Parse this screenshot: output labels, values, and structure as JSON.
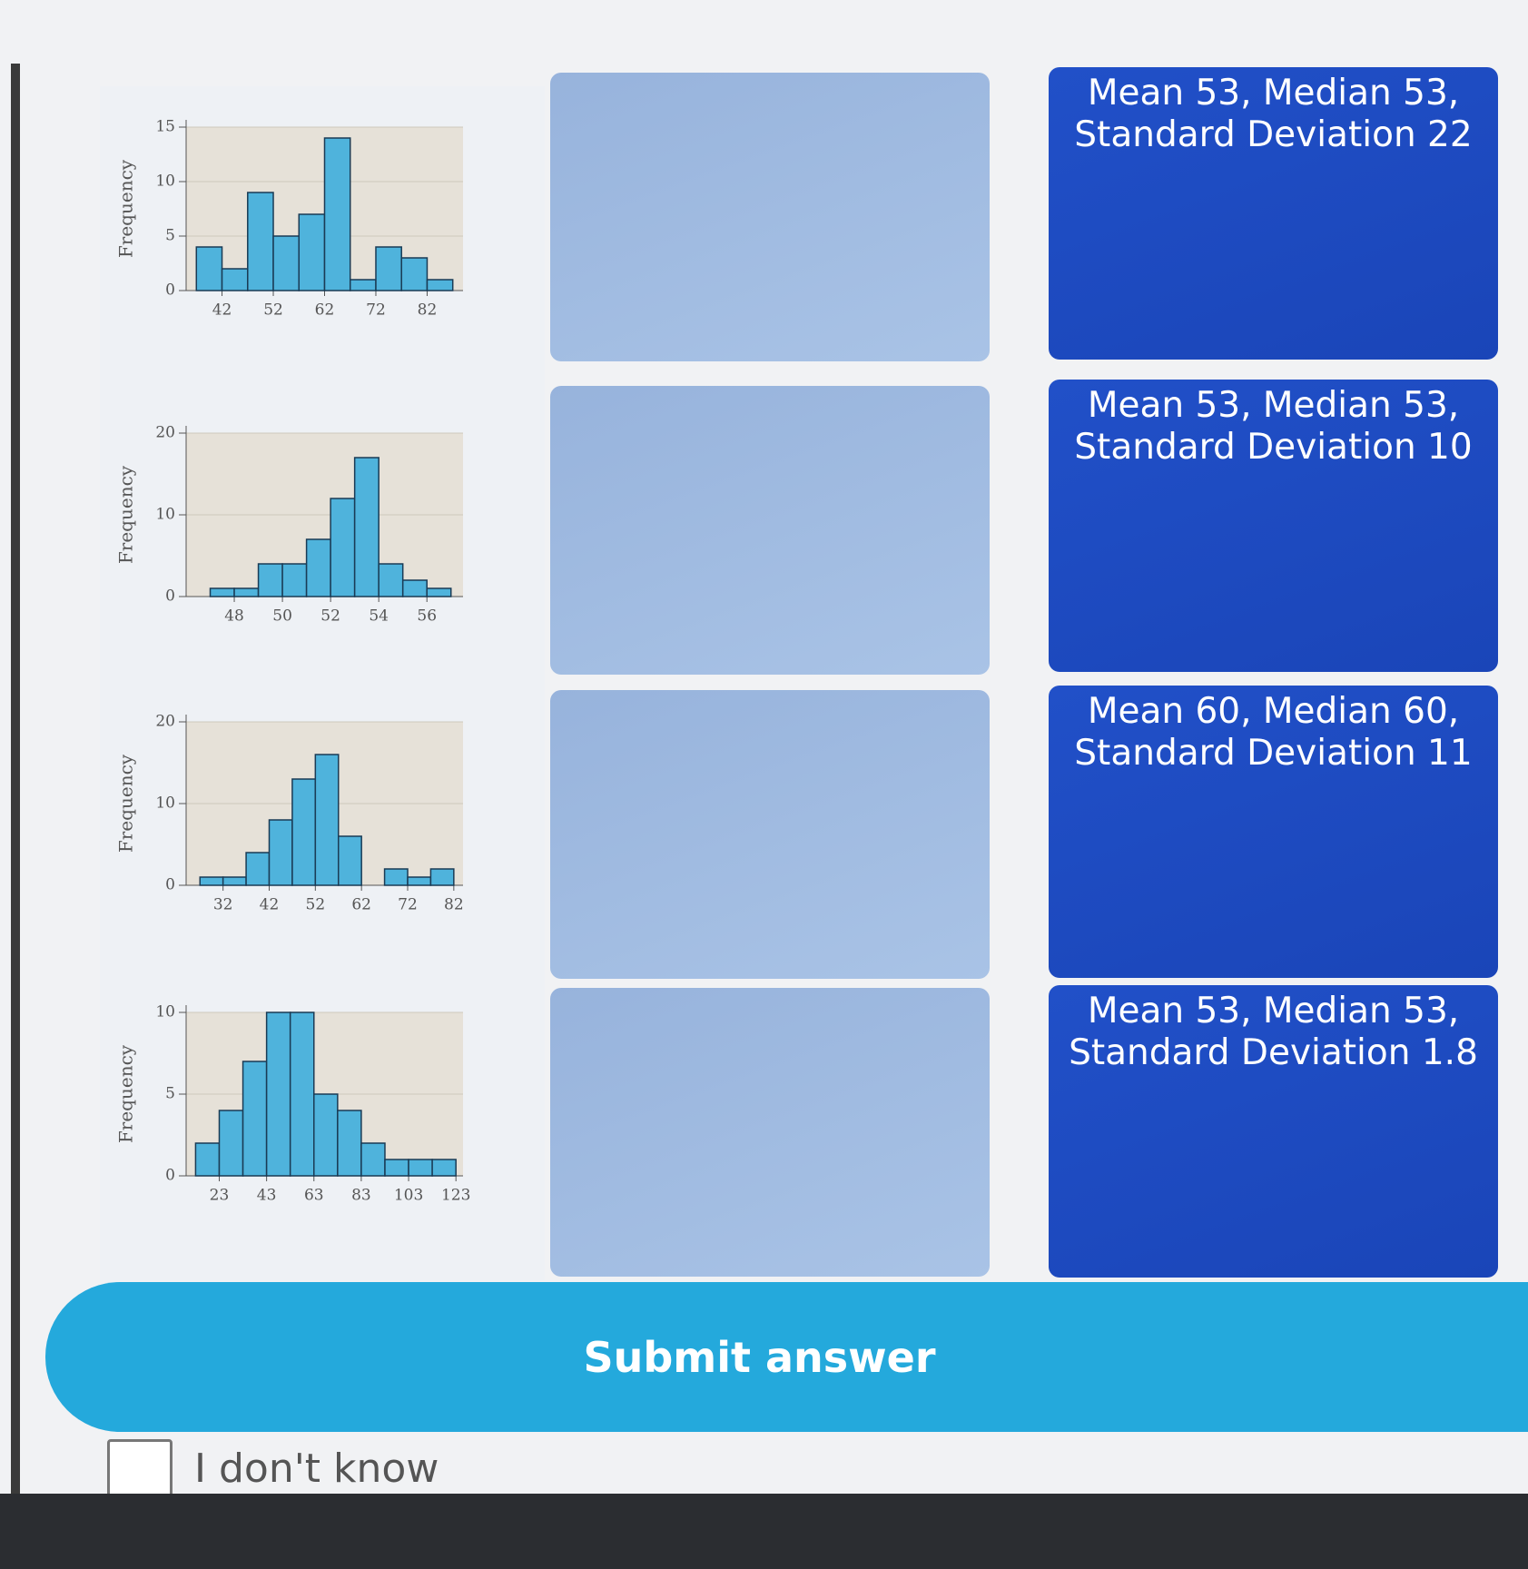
{
  "histograms": [
    {
      "type": "histogram",
      "y_label": "Frequency",
      "bins": [
        37,
        42,
        47,
        52,
        57,
        62,
        67,
        72,
        77,
        82,
        87
      ],
      "values": [
        4,
        2,
        9,
        5,
        7,
        14,
        1,
        4,
        3,
        1
      ],
      "xlim": [
        35,
        89
      ],
      "ylim": [
        0,
        15
      ],
      "xticks": [
        42,
        52,
        62,
        72,
        82
      ],
      "yticks": [
        0,
        5,
        10,
        15
      ],
      "color": "#4fb3dc"
    },
    {
      "type": "histogram",
      "y_label": "Frequency",
      "bins": [
        47,
        48,
        49,
        50,
        51,
        52,
        53,
        54,
        55,
        56,
        57
      ],
      "values": [
        1,
        1,
        4,
        4,
        7,
        12,
        17,
        4,
        2,
        1
      ],
      "xlim": [
        46,
        57.5
      ],
      "ylim": [
        0,
        20
      ],
      "xticks": [
        48,
        50,
        52,
        54,
        56
      ],
      "yticks": [
        0,
        10,
        20
      ],
      "color": "#4fb3dc"
    },
    {
      "type": "histogram",
      "y_label": "Frequency",
      "bins": [
        27,
        32,
        37,
        42,
        47,
        52,
        57,
        62,
        67,
        72,
        77,
        82
      ],
      "values": [
        1,
        1,
        4,
        8,
        13,
        16,
        6,
        0,
        2,
        1,
        2
      ],
      "xlim": [
        24,
        84
      ],
      "ylim": [
        0,
        20
      ],
      "xticks": [
        32,
        42,
        52,
        62,
        72,
        82
      ],
      "yticks": [
        0,
        10,
        20
      ],
      "color": "#4fb3dc"
    },
    {
      "type": "histogram",
      "y_label": "Frequency",
      "bins": [
        13,
        23,
        33,
        43,
        53,
        63,
        73,
        83,
        93,
        103,
        113,
        123
      ],
      "values": [
        2,
        4,
        7,
        10,
        10,
        5,
        4,
        2,
        1,
        1,
        1
      ],
      "xlim": [
        9,
        126
      ],
      "ylim": [
        0,
        10
      ],
      "xticks": [
        23,
        43,
        63,
        83,
        103,
        123
      ],
      "yticks": [
        0,
        5,
        10
      ],
      "color": "#4fb3dc"
    }
  ],
  "answers": [
    "Mean 53, Median 53, Standard Deviation 22",
    "Mean 53, Median 53, Standard Deviation 10",
    "Mean 60, Median 60, Standard Deviation 11",
    "Mean 53, Median 53, Standard Deviation 1.8"
  ],
  "submit": "Submit answer",
  "dont_know": "I don't know"
}
